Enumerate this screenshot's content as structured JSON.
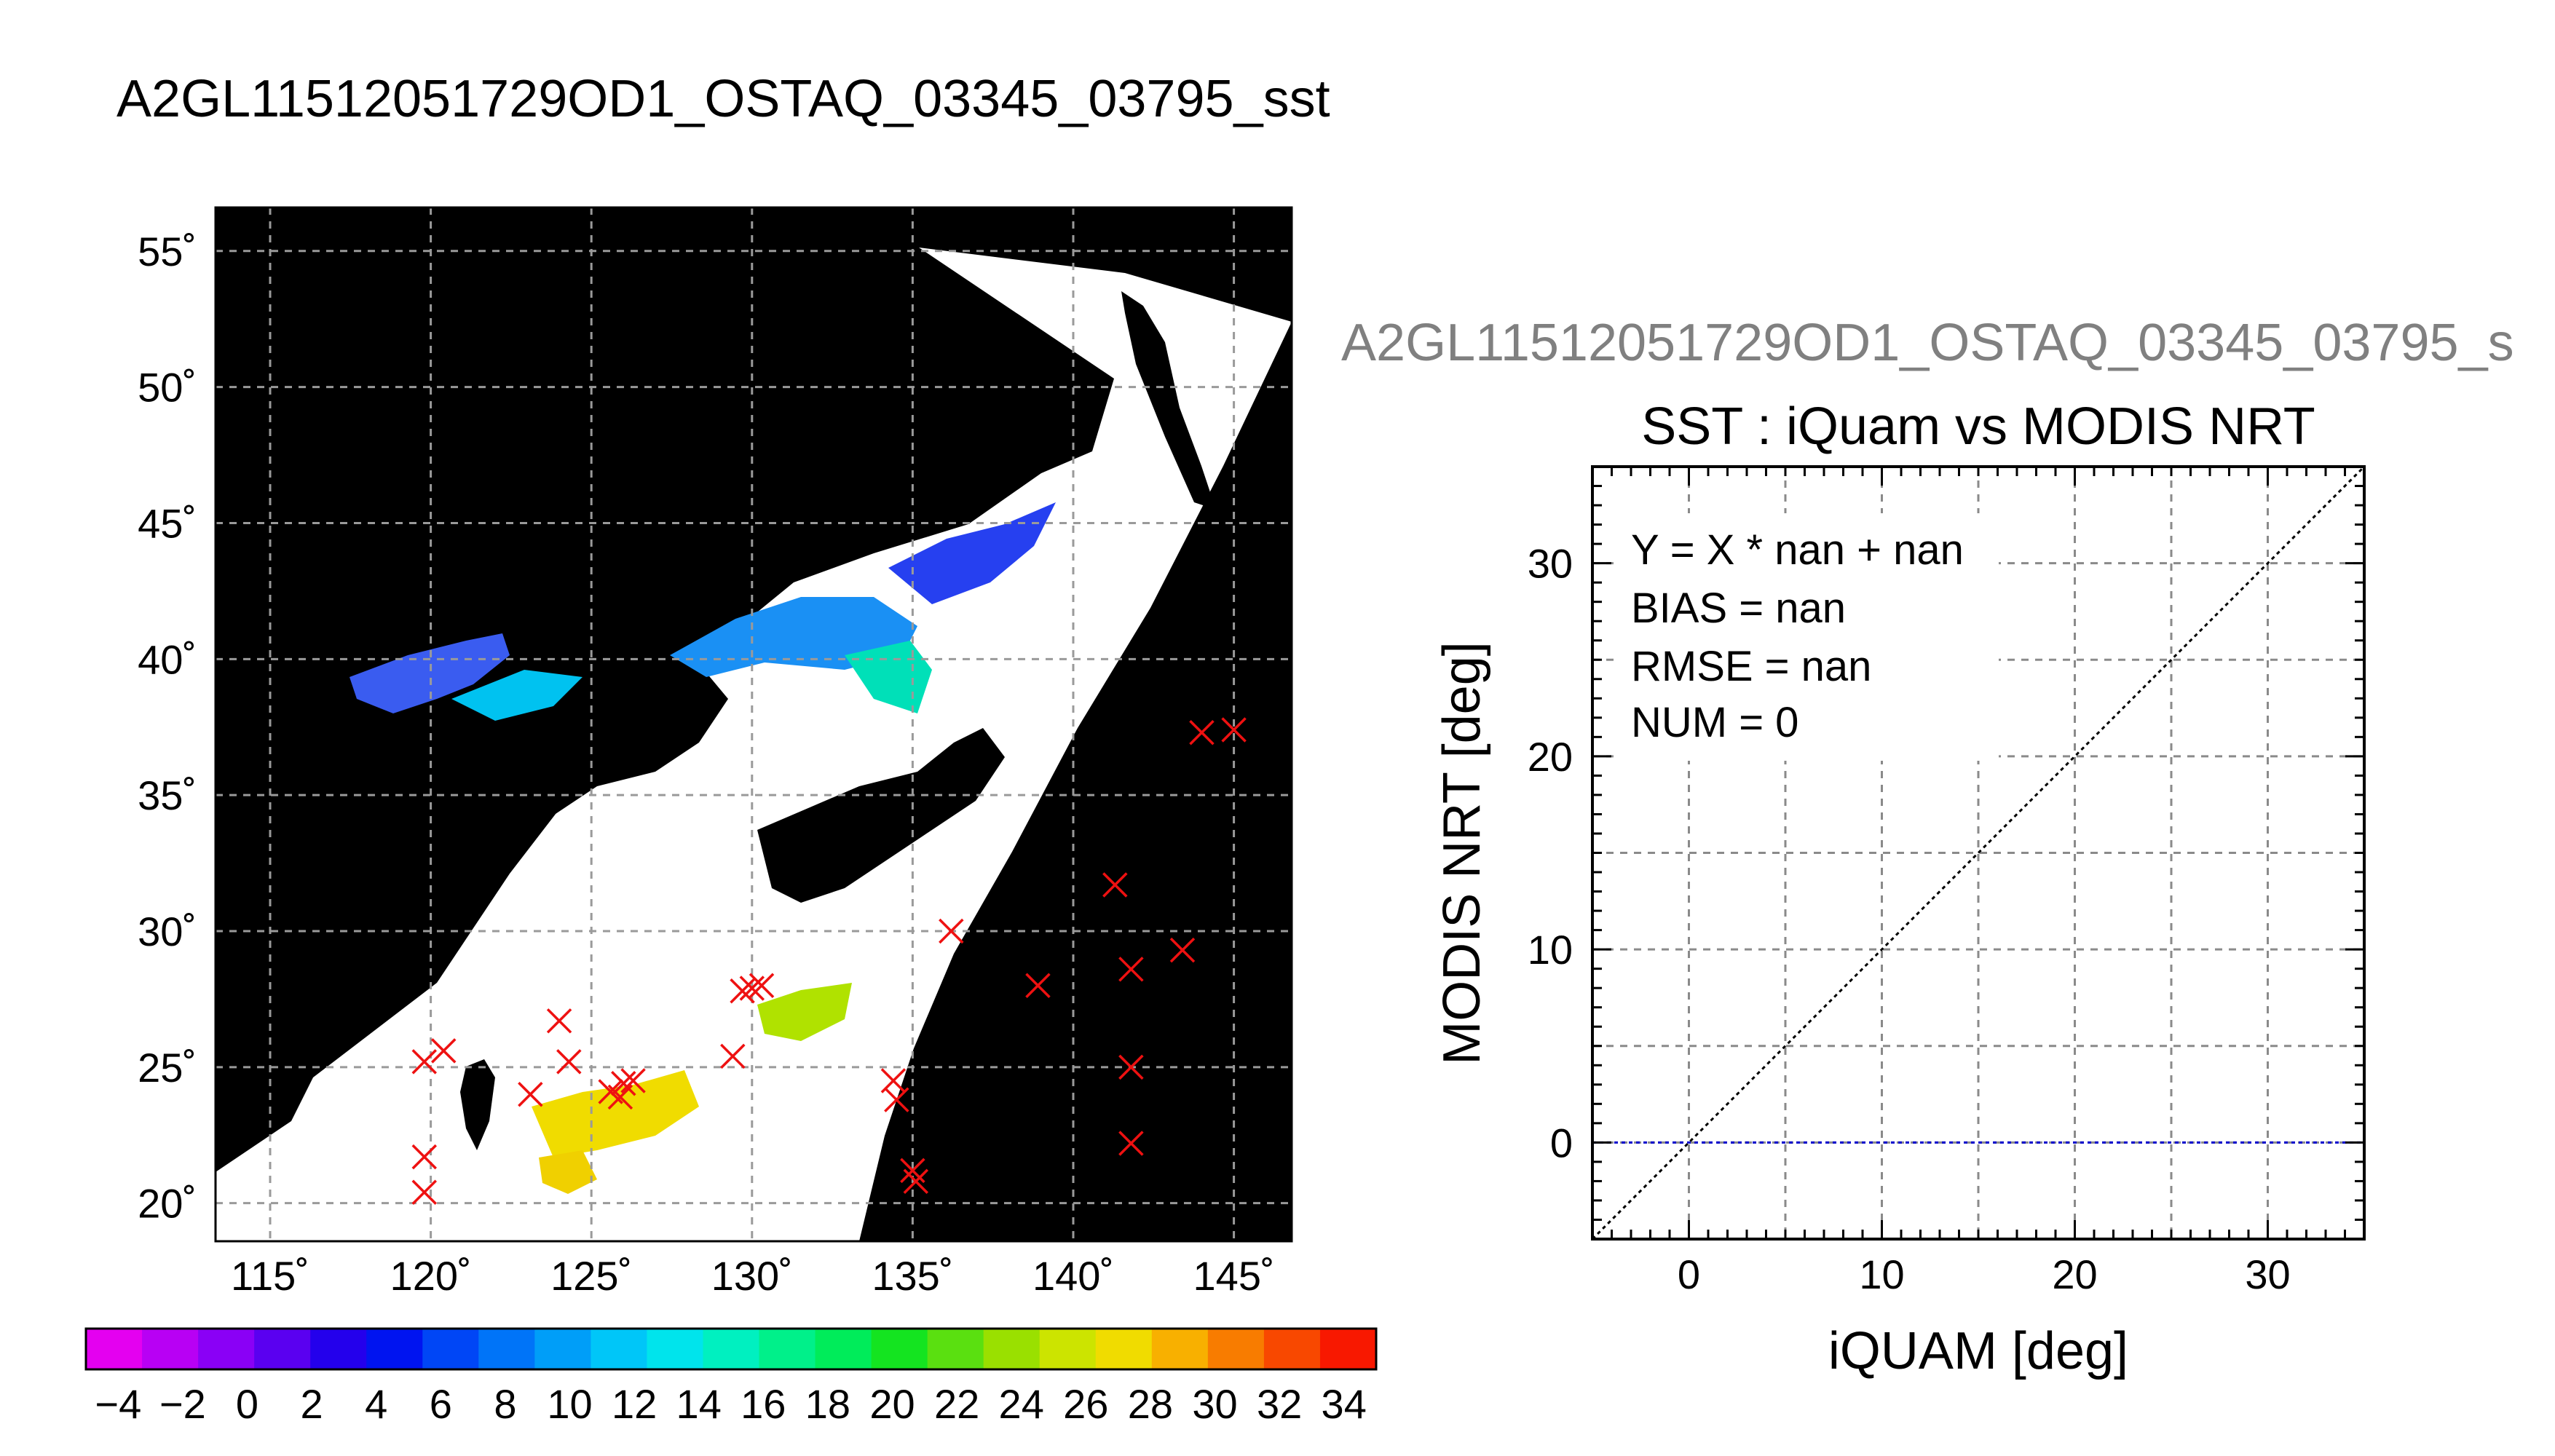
{
  "page_title": "A2GL11512051729OD1_OSTAQ_03345_03795_sst",
  "map": {
    "lat_ticks": [
      "55˚",
      "50˚",
      "45˚",
      "40˚",
      "35˚",
      "30˚",
      "25˚",
      "20˚"
    ],
    "lon_ticks": [
      "115˚",
      "120˚",
      "125˚",
      "130˚",
      "135˚",
      "140˚",
      "145˚"
    ],
    "lon_range": [
      113.3,
      146.8
    ],
    "lat_range": [
      18.6,
      56.6
    ],
    "colors": {
      "land": "#000000",
      "cloud_mask": "#ffffff",
      "gridline": "#9a9a9a",
      "marker": "#ee1111"
    },
    "markers": [
      [
        119.8,
        25.2
      ],
      [
        120.4,
        25.6
      ],
      [
        124.0,
        26.7
      ],
      [
        124.3,
        25.2
      ],
      [
        123.1,
        24.0
      ],
      [
        125.6,
        24.1
      ],
      [
        126.0,
        24.4
      ],
      [
        126.3,
        24.5
      ],
      [
        125.9,
        23.9
      ],
      [
        129.7,
        27.8
      ],
      [
        130.0,
        27.9
      ],
      [
        130.3,
        28.0
      ],
      [
        129.4,
        25.4
      ],
      [
        119.8,
        21.7
      ],
      [
        119.8,
        20.4
      ],
      [
        134.4,
        24.5
      ],
      [
        134.5,
        23.8
      ],
      [
        135.0,
        21.2
      ],
      [
        135.1,
        20.8
      ],
      [
        136.2,
        30.0
      ],
      [
        138.9,
        28.0
      ],
      [
        141.3,
        31.7
      ],
      [
        141.8,
        28.6
      ],
      [
        141.8,
        25.0
      ],
      [
        141.8,
        22.2
      ],
      [
        143.4,
        29.3
      ],
      [
        144.0,
        37.3
      ],
      [
        145.0,
        37.4
      ]
    ]
  },
  "colorbar": {
    "labels": [
      "−4",
      "−2",
      "0",
      "2",
      "4",
      "6",
      "8",
      "10",
      "12",
      "14",
      "16",
      "18",
      "20",
      "22",
      "24",
      "26",
      "28",
      "30",
      "32",
      "34"
    ],
    "min": -5,
    "max": 35,
    "colors": [
      "#e400f0",
      "#b800f4",
      "#8a00f6",
      "#5a00f0",
      "#2400ec",
      "#0014f0",
      "#0046f6",
      "#0074f8",
      "#009ef8",
      "#00c6f8",
      "#00e4ec",
      "#00f0c0",
      "#00f08a",
      "#00ec5a",
      "#14e420",
      "#5ae010",
      "#9ae000",
      "#cce400",
      "#f0dc00",
      "#f8b000",
      "#f87c00",
      "#f84800",
      "#f81800"
    ]
  },
  "scatter_panel": {
    "file_title": "A2GL11512051729OD1_OSTAQ_03345_03795_s",
    "stats": [
      "Y = X * nan + nan",
      "BIAS = nan",
      "RMSE = nan",
      "NUM = 0"
    ]
  },
  "chart_data": {
    "type": "scatter",
    "title": "SST : iQuam vs MODIS NRT",
    "xlabel": "iQUAM [deg]",
    "ylabel": "MODIS NRT [deg]",
    "xlim": [
      -5,
      35
    ],
    "ylim": [
      -5,
      35
    ],
    "xticks": [
      0,
      10,
      20,
      30
    ],
    "yticks": [
      0,
      10,
      20,
      30
    ],
    "grid": true,
    "points": [],
    "lines": [
      {
        "name": "1:1",
        "x": [
          -5,
          35
        ],
        "y": [
          -5,
          35
        ],
        "color": "#000000",
        "style": "dotted"
      },
      {
        "name": "zero",
        "x": [
          -5,
          35
        ],
        "y": [
          0,
          0
        ],
        "color": "#0000cc",
        "style": "dotted"
      }
    ]
  }
}
